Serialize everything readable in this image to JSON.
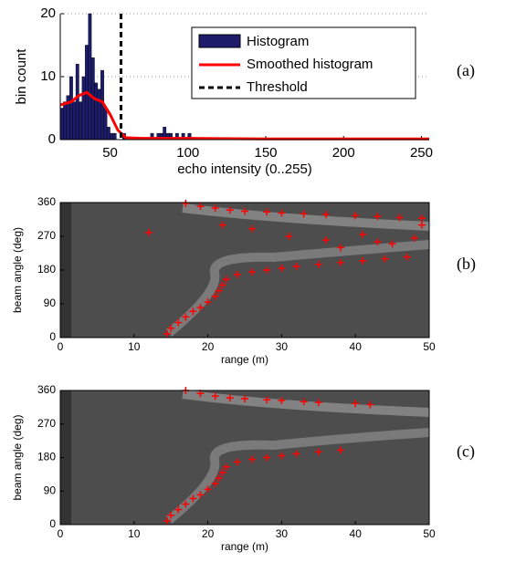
{
  "chart_data": [
    {
      "type": "histogram",
      "panel_label": "(a)",
      "xlabel": "echo intensity (0..255)",
      "ylabel": "bin count",
      "xlim": [
        18,
        255
      ],
      "xticks": [
        50,
        100,
        150,
        200,
        250
      ],
      "ylim": [
        0,
        20
      ],
      "yticks": [
        0,
        10,
        20
      ],
      "grid": true,
      "series": [
        {
          "name": "Histogram",
          "color": "#1c1c6b",
          "bins": [
            18,
            20,
            22,
            24,
            26,
            28,
            30,
            32,
            34,
            36,
            38,
            40,
            42,
            44,
            46,
            48,
            50,
            52,
            54,
            56,
            58,
            60,
            62,
            64,
            66,
            68,
            70,
            72,
            74,
            76,
            78,
            80,
            82,
            84,
            86,
            88,
            90,
            92,
            94,
            96,
            98,
            100,
            102,
            104
          ],
          "values": [
            5,
            6,
            7,
            10,
            6,
            12,
            6,
            10,
            15,
            20,
            13,
            9,
            8,
            11,
            5,
            2,
            1,
            1,
            0,
            0,
            1,
            0,
            0,
            0,
            0,
            0,
            0,
            0,
            0,
            1,
            0,
            1,
            1,
            2,
            1,
            1,
            0,
            1,
            0,
            1,
            0,
            1,
            0
          ]
        },
        {
          "name": "Smoothed histogram",
          "color": "#ff0000",
          "x": [
            18,
            25,
            30,
            35,
            40,
            45,
            50,
            55,
            60,
            70,
            100,
            150,
            200,
            255
          ],
          "values": [
            5.5,
            6,
            7,
            7.5,
            6.5,
            6,
            4,
            1.5,
            0.3,
            0.2,
            0.2,
            0.1,
            0.1,
            0.1
          ]
        },
        {
          "name": "Threshold",
          "color": "#000000",
          "x": 57
        }
      ]
    },
    {
      "type": "scatter",
      "panel_label": "(b)",
      "xlabel": "range (m)",
      "ylabel": "beam angle (deg)",
      "xlim": [
        0,
        50
      ],
      "xticks": [
        0,
        10,
        20,
        30,
        40,
        50
      ],
      "ylim": [
        0,
        360
      ],
      "yticks": [
        0,
        90,
        180,
        270,
        360
      ],
      "color": "#ff0000",
      "x": [
        14.5,
        15,
        16,
        17,
        18,
        19,
        20,
        21,
        21.5,
        22,
        22.5,
        24,
        26,
        28,
        30,
        32,
        35,
        38,
        41,
        44,
        47,
        17,
        19,
        21,
        23,
        25,
        28,
        30,
        33,
        36,
        40,
        43,
        46,
        49,
        12,
        22,
        26,
        31,
        36,
        41,
        45,
        48,
        49,
        38,
        43
      ],
      "values": [
        10,
        25,
        40,
        55,
        70,
        80,
        95,
        110,
        125,
        140,
        155,
        168,
        175,
        180,
        185,
        190,
        195,
        200,
        205,
        210,
        215,
        358,
        350,
        345,
        340,
        337,
        335,
        332,
        330,
        328,
        325,
        323,
        320,
        318,
        280,
        300,
        290,
        270,
        260,
        275,
        250,
        265,
        300,
        240,
        255
      ]
    },
    {
      "type": "scatter",
      "panel_label": "(c)",
      "xlabel": "range (m)",
      "ylabel": "beam angle (deg)",
      "xlim": [
        0,
        50
      ],
      "xticks": [
        0,
        10,
        20,
        30,
        40,
        50
      ],
      "ylim": [
        0,
        360
      ],
      "yticks": [
        0,
        90,
        180,
        270,
        360
      ],
      "color": "#ff0000",
      "x": [
        14.5,
        15,
        16,
        17,
        18,
        19,
        20,
        21,
        21.5,
        22,
        22.5,
        24,
        26,
        28,
        30,
        32,
        35,
        38,
        17,
        19,
        21,
        23,
        25,
        28,
        30,
        33,
        35,
        40,
        42
      ],
      "values": [
        10,
        25,
        40,
        55,
        70,
        80,
        95,
        110,
        125,
        140,
        155,
        168,
        175,
        180,
        185,
        190,
        195,
        200,
        360,
        352,
        345,
        340,
        338,
        335,
        333,
        330,
        328,
        325,
        322
      ]
    }
  ]
}
